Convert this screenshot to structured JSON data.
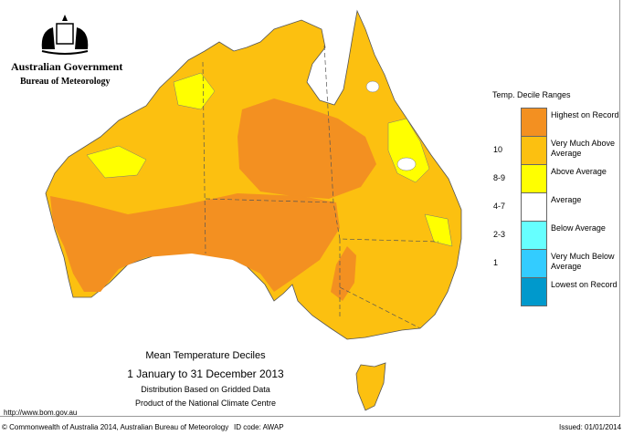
{
  "header": {
    "government": "Australian Government",
    "bureau": "Bureau of Meteorology"
  },
  "legend": {
    "title": "Temp. Decile Ranges",
    "items": [
      {
        "code": "",
        "label": "Highest on Record",
        "color": "#f39021"
      },
      {
        "code": "10",
        "label": "Very Much Above Average",
        "color": "#fcc010"
      },
      {
        "code": "8-9",
        "label": "Above Average",
        "color": "#ffff00"
      },
      {
        "code": "4-7",
        "label": "Average",
        "color": "#ffffff"
      },
      {
        "code": "2-3",
        "label": "Below Average",
        "color": "#66ffff"
      },
      {
        "code": "1",
        "label": "Very Much Below Average",
        "color": "#33ccff"
      },
      {
        "code": "",
        "label": "Lowest on Record",
        "color": "#0099cc"
      }
    ]
  },
  "map_title": {
    "line1": "Mean Temperature Deciles",
    "line2": "1 January to 31 December 2013",
    "line3": "Distribution Based on Gridded Data",
    "line4": "Product of the National Climate Centre"
  },
  "footer": {
    "url": "http://www.bom.gov.au",
    "copyright": "© Commonwealth of Australia 2014, Australian Bureau of Meteorology",
    "id_code": "ID code: AWAP",
    "issued": "Issued: 01/01/2014"
  }
}
